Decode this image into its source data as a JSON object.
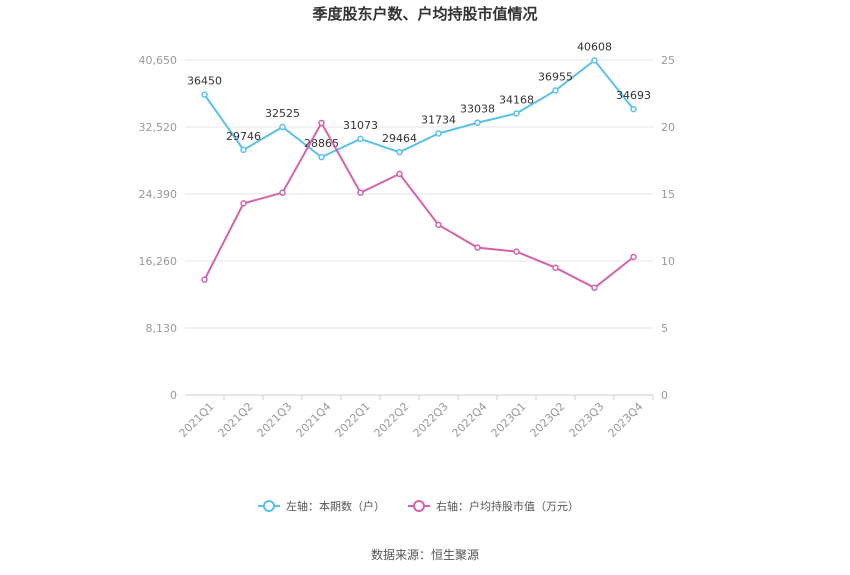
{
  "chart_data": {
    "type": "line",
    "title": "季度股东户数、户均持股市值情况",
    "categories": [
      "2021Q1",
      "2021Q2",
      "2021Q3",
      "2021Q4",
      "2022Q1",
      "2022Q2",
      "2022Q3",
      "2022Q4",
      "2023Q1",
      "2023Q2",
      "2023Q3",
      "2023Q4"
    ],
    "y_left": {
      "ticks": [
        "0",
        "8,130",
        "16,260",
        "24,390",
        "32,520",
        "40,650"
      ],
      "ylim": [
        0,
        40650
      ]
    },
    "y_right": {
      "ticks": [
        "0",
        "5",
        "10",
        "15",
        "20",
        "25"
      ],
      "ylim": [
        0,
        25
      ]
    },
    "series": [
      {
        "name": "左轴：本期数（户）",
        "axis": "left",
        "color": "#5bc0eb",
        "values": [
          36450,
          29746,
          32525,
          28865,
          31073,
          29464,
          31734,
          33038,
          34168,
          36955,
          40608,
          34693
        ],
        "labels": [
          "36450",
          "29746",
          "32525",
          "28865",
          "31073",
          "29464",
          "31734",
          "33038",
          "34168",
          "36955",
          "40608",
          "34693"
        ]
      },
      {
        "name": "右轴：户均持股市值（万元）",
        "axis": "right",
        "color": "#d463ab",
        "values": [
          8.6,
          14.3,
          15.1,
          20.3,
          15.1,
          16.5,
          12.7,
          11.0,
          10.7,
          9.5,
          8.0,
          10.3
        ]
      }
    ],
    "grid": true,
    "legend_position": "bottom-center"
  },
  "source": "数据来源：恒生聚源"
}
